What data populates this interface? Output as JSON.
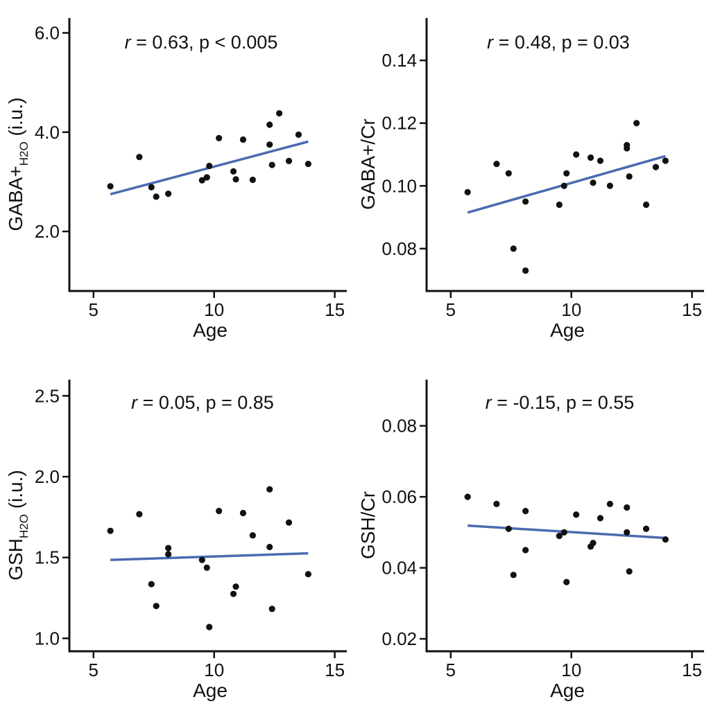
{
  "colors": {
    "fit_line": "#4a6bb0",
    "points": "#111111",
    "axis": "#111111",
    "background": "#ffffff"
  },
  "chart_data": [
    {
      "type": "scatter",
      "panel": "top-left",
      "title": "",
      "annotation": {
        "r_symbol": "r",
        "rest": " = 0.63, p < 0.005"
      },
      "xlabel": "Age",
      "ylabel": {
        "main": "GABA+",
        "sub": "H2O",
        "tail": " (i.u.)"
      },
      "xlim": [
        4,
        15.5
      ],
      "ylim": [
        0.8,
        6.3
      ],
      "xticks": [
        5,
        10,
        15
      ],
      "xtick_labels": [
        "5",
        "10",
        "15"
      ],
      "yticks": [
        2.0,
        4.0,
        6.0
      ],
      "ytick_labels": [
        "2.0",
        "4.0",
        "6.0"
      ],
      "points": [
        [
          5.7,
          2.91
        ],
        [
          6.9,
          3.5
        ],
        [
          7.4,
          2.89
        ],
        [
          7.6,
          2.7
        ],
        [
          8.1,
          2.76
        ],
        [
          9.5,
          3.03
        ],
        [
          9.7,
          3.09
        ],
        [
          9.8,
          3.32
        ],
        [
          10.2,
          3.88
        ],
        [
          10.8,
          3.21
        ],
        [
          10.9,
          3.05
        ],
        [
          11.2,
          3.85
        ],
        [
          11.6,
          3.04
        ],
        [
          12.3,
          4.15
        ],
        [
          12.3,
          3.75
        ],
        [
          12.4,
          3.34
        ],
        [
          12.7,
          4.38
        ],
        [
          13.1,
          3.42
        ],
        [
          13.5,
          3.95
        ],
        [
          13.9,
          3.36
        ]
      ],
      "fit": {
        "x": [
          5.7,
          13.9
        ],
        "y": [
          2.75,
          3.81
        ]
      }
    },
    {
      "type": "scatter",
      "panel": "top-right",
      "title": "",
      "annotation": {
        "r_symbol": "r",
        "rest": " = 0.48, p = 0.03"
      },
      "xlabel": "Age",
      "ylabel": {
        "main": "GABA+/Cr",
        "sub": "",
        "tail": ""
      },
      "xlim": [
        4,
        15.5
      ],
      "ylim": [
        0.0665,
        0.1535
      ],
      "xticks": [
        5,
        10,
        15
      ],
      "xtick_labels": [
        "5",
        "10",
        "15"
      ],
      "yticks": [
        0.08,
        0.1,
        0.12,
        0.14
      ],
      "ytick_labels": [
        "0.08",
        "0.10",
        "0.12",
        "0.14"
      ],
      "points": [
        [
          5.7,
          0.098
        ],
        [
          6.9,
          0.107
        ],
        [
          7.4,
          0.104
        ],
        [
          7.6,
          0.08
        ],
        [
          8.1,
          0.095
        ],
        [
          8.1,
          0.073
        ],
        [
          9.5,
          0.094
        ],
        [
          9.7,
          0.1
        ],
        [
          9.8,
          0.104
        ],
        [
          10.2,
          0.11
        ],
        [
          10.8,
          0.109
        ],
        [
          10.9,
          0.101
        ],
        [
          11.2,
          0.108
        ],
        [
          11.6,
          0.1
        ],
        [
          12.3,
          0.113
        ],
        [
          12.3,
          0.112
        ],
        [
          12.4,
          0.103
        ],
        [
          12.7,
          0.12
        ],
        [
          13.1,
          0.094
        ],
        [
          13.5,
          0.106
        ],
        [
          13.9,
          0.108
        ]
      ],
      "fit": {
        "x": [
          5.7,
          13.9
        ],
        "y": [
          0.0915,
          0.1095
        ]
      }
    },
    {
      "type": "scatter",
      "panel": "bottom-left",
      "title": "",
      "annotation": {
        "r_symbol": "r",
        "rest": " = 0.05, p = 0.85"
      },
      "xlabel": "Age",
      "ylabel": {
        "main": "GSH",
        "sub": "H2O",
        "tail": " (i.u.)"
      },
      "xlim": [
        4,
        15.5
      ],
      "ylim": [
        0.92,
        2.6
      ],
      "xticks": [
        5,
        10,
        15
      ],
      "xtick_labels": [
        "5",
        "10",
        "15"
      ],
      "yticks": [
        1.0,
        1.5,
        2.0,
        2.5
      ],
      "ytick_labels": [
        "1.0",
        "1.5",
        "2.0",
        "2.5"
      ],
      "points": [
        [
          5.7,
          1.665
        ],
        [
          6.9,
          1.768
        ],
        [
          7.4,
          1.335
        ],
        [
          7.6,
          1.2
        ],
        [
          8.1,
          1.558
        ],
        [
          8.1,
          1.52
        ],
        [
          9.5,
          1.485
        ],
        [
          9.7,
          1.437
        ],
        [
          9.8,
          1.07
        ],
        [
          10.2,
          1.788
        ],
        [
          10.8,
          1.275
        ],
        [
          10.9,
          1.32
        ],
        [
          11.2,
          1.775
        ],
        [
          11.6,
          1.637
        ],
        [
          12.3,
          1.922
        ],
        [
          12.3,
          1.565
        ],
        [
          12.4,
          1.182
        ],
        [
          13.1,
          1.716
        ],
        [
          13.9,
          1.397
        ]
      ],
      "fit": {
        "x": [
          5.7,
          13.9
        ],
        "y": [
          1.485,
          1.526
        ]
      }
    },
    {
      "type": "scatter",
      "panel": "bottom-right",
      "title": "",
      "annotation": {
        "r_symbol": "r",
        "rest": " = -0.15, p = 0.55"
      },
      "xlabel": "Age",
      "ylabel": {
        "main": "GSH/Cr",
        "sub": "",
        "tail": ""
      },
      "xlim": [
        4,
        15.5
      ],
      "ylim": [
        0.0165,
        0.093
      ],
      "xticks": [
        5,
        10,
        15
      ],
      "xtick_labels": [
        "5",
        "10",
        "15"
      ],
      "yticks": [
        0.02,
        0.04,
        0.06,
        0.08
      ],
      "ytick_labels": [
        "0.02",
        "0.04",
        "0.06",
        "0.08"
      ],
      "points": [
        [
          5.7,
          0.06
        ],
        [
          6.9,
          0.058
        ],
        [
          7.4,
          0.051
        ],
        [
          7.6,
          0.038
        ],
        [
          8.1,
          0.056
        ],
        [
          8.1,
          0.045
        ],
        [
          9.5,
          0.049
        ],
        [
          9.7,
          0.05
        ],
        [
          9.8,
          0.036
        ],
        [
          10.2,
          0.055
        ],
        [
          10.8,
          0.046
        ],
        [
          10.9,
          0.047
        ],
        [
          11.2,
          0.054
        ],
        [
          11.6,
          0.058
        ],
        [
          12.3,
          0.057
        ],
        [
          12.3,
          0.05
        ],
        [
          12.4,
          0.039
        ],
        [
          13.1,
          0.051
        ],
        [
          13.9,
          0.048
        ]
      ],
      "fit": {
        "x": [
          5.7,
          13.9
        ],
        "y": [
          0.0519,
          0.0484
        ]
      }
    }
  ]
}
